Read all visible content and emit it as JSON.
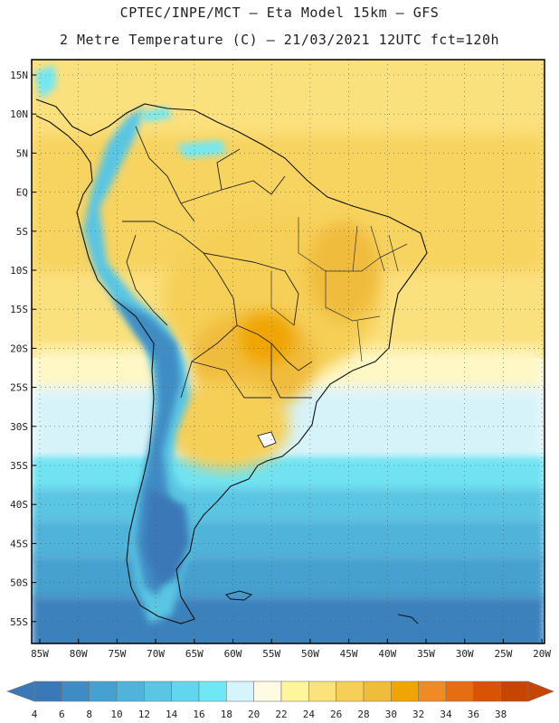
{
  "header": {
    "line1": "CPTEC/INPE/MCT –  Eta Model 15km – GFS",
    "line2": "2 Metre Temperature (C) – 21/03/2021 12UTC fct=120h"
  },
  "map": {
    "lat_labels": [
      "15N",
      "10N",
      "5N",
      "EQ",
      "5S",
      "10S",
      "15S",
      "20S",
      "25S",
      "30S",
      "35S",
      "40S",
      "45S",
      "50S",
      "55S"
    ],
    "lon_labels": [
      "85W",
      "80W",
      "75W",
      "70W",
      "65W",
      "60W",
      "55W",
      "50W",
      "45W",
      "40W",
      "35W",
      "30W",
      "25W",
      "20W"
    ]
  },
  "colorbar": {
    "labels": [
      "4",
      "6",
      "8",
      "10",
      "12",
      "14",
      "16",
      "18",
      "20",
      "22",
      "24",
      "26",
      "28",
      "30",
      "32",
      "34",
      "36",
      "38"
    ],
    "colors": [
      "#3a78b8",
      "#3f8cc4",
      "#45a1cf",
      "#4fb3da",
      "#5ac6e3",
      "#62d6ec",
      "#6fe8f5",
      "#d5f4fb",
      "#fffbe2",
      "#fff59a",
      "#fbe27a",
      "#f6cf56",
      "#f0bc3c",
      "#f0a500",
      "#ee8b25",
      "#e56e12",
      "#d85306",
      "#c64500"
    ]
  }
}
